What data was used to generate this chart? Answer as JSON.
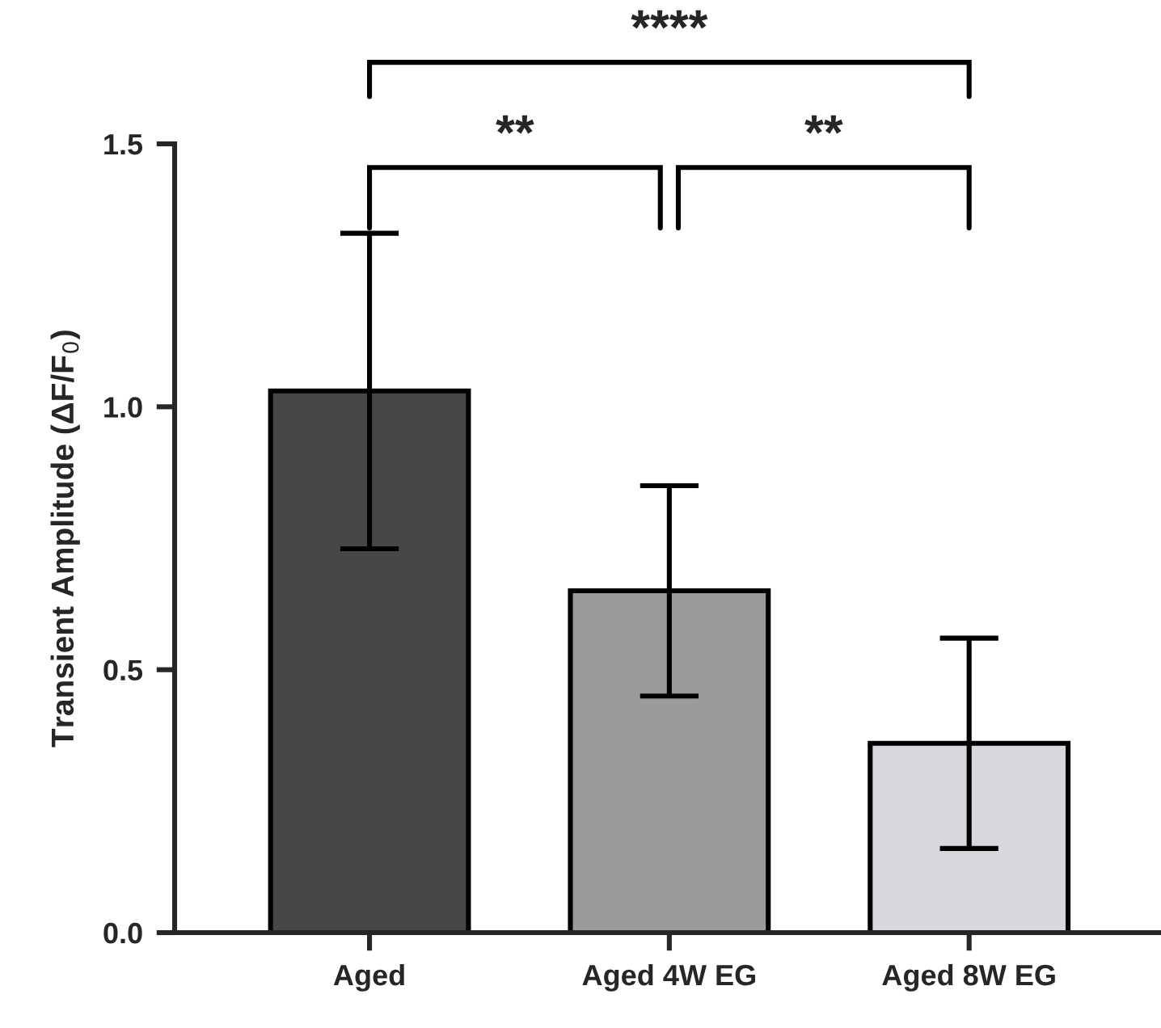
{
  "chart_data": {
    "type": "bar",
    "ylabel": "Transient Amplitude (ΔF/F$_{0}$)",
    "categories": [
      "Aged",
      "Aged 4W EG",
      "Aged 8W EG"
    ],
    "values": [
      1.03,
      0.65,
      0.36
    ],
    "errors": [
      0.3,
      0.2,
      0.2
    ],
    "colors": [
      "#474747",
      "#9b999c",
      "#d8d7db"
    ],
    "ylim": [
      0,
      1.5
    ],
    "yticks": [
      {
        "value": 0,
        "label": "0.0"
      },
      {
        "value": 0.5,
        "label": "0.5"
      },
      {
        "value": 1.0,
        "label": "1.0"
      },
      {
        "value": 1.5,
        "label": "1.5"
      }
    ],
    "grid": false,
    "legend": false,
    "annotations": [
      "**",
      "**",
      "****"
    ]
  }
}
